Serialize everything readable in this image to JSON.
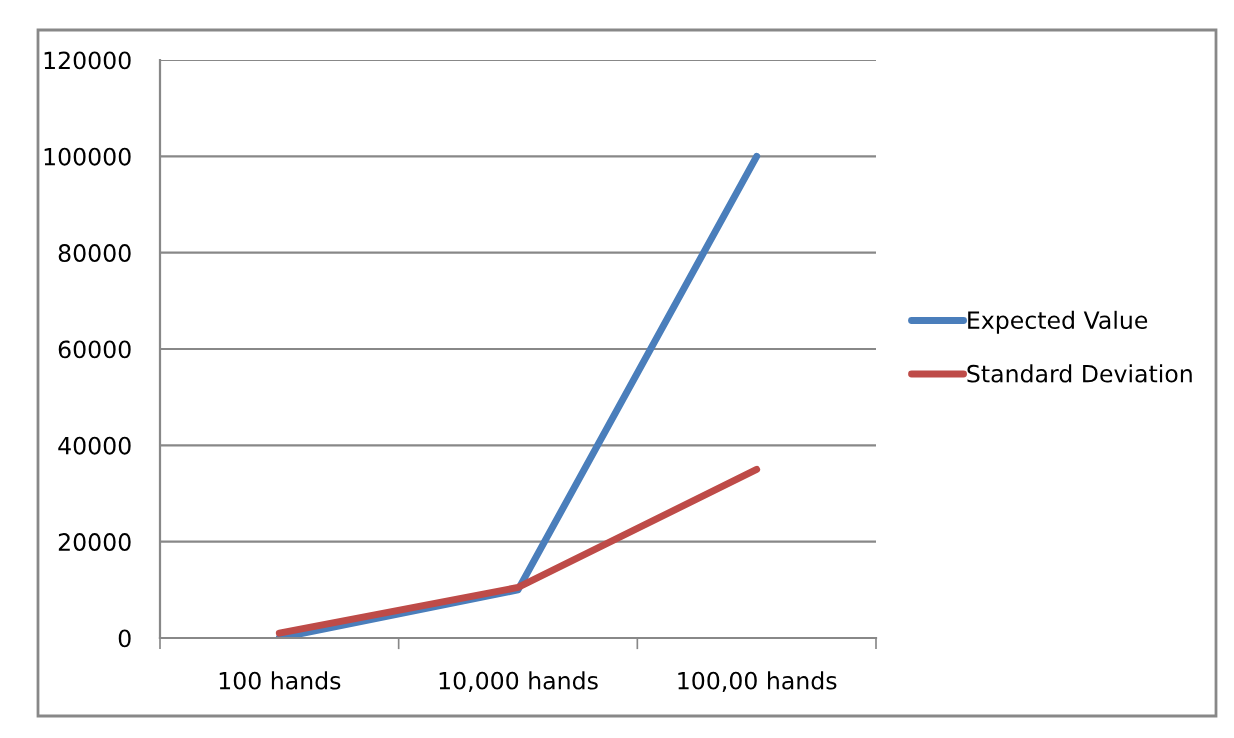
{
  "chart_data": {
    "type": "line",
    "categories": [
      "100 hands",
      "10,000 hands",
      "100,00 hands"
    ],
    "series": [
      {
        "name": "Expected Value",
        "color": "#4a7ebb",
        "values": [
          0,
          10000,
          100000
        ]
      },
      {
        "name": "Standard Deviation",
        "color": "#be4b48",
        "values": [
          1000,
          10500,
          35000
        ]
      }
    ],
    "ylim": [
      0,
      120000
    ],
    "yticks": [
      0,
      20000,
      40000,
      60000,
      80000,
      100000,
      120000
    ],
    "grid": "y",
    "legend": "right",
    "marker": "none",
    "line_style": "solid"
  }
}
